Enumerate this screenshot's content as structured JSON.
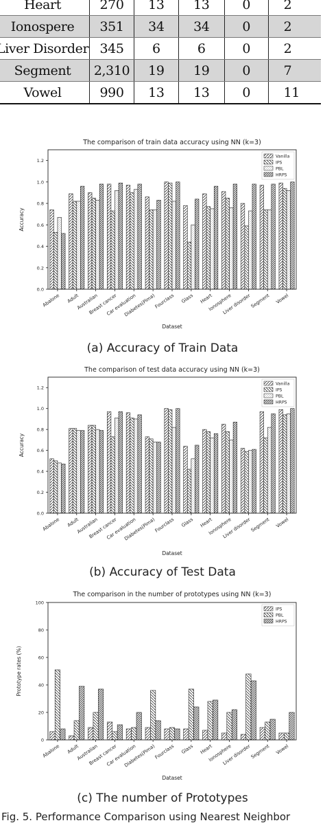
{
  "table": {
    "rows": [
      {
        "name": "Heart",
        "c1": "270",
        "c2": "13",
        "c3": "13",
        "c4": "0",
        "c5": "2",
        "shade": false
      },
      {
        "name": "Ionospere",
        "c1": "351",
        "c2": "34",
        "c3": "34",
        "c4": "0",
        "c5": "2",
        "shade": true
      },
      {
        "name": "Liver Disorder",
        "c1": "345",
        "c2": "6",
        "c3": "6",
        "c4": "0",
        "c5": "2",
        "shade": false
      },
      {
        "name": "Segment",
        "c1": "2,310",
        "c2": "19",
        "c3": "19",
        "c4": "0",
        "c5": "7",
        "shade": true
      },
      {
        "name": "Vowel",
        "c1": "990",
        "c2": "13",
        "c3": "13",
        "c4": "0",
        "c5": "11",
        "shade": false
      }
    ]
  },
  "captions": {
    "a": "(a) Accuracy of Train Data",
    "b": "(b) Accuracy of Test Data",
    "c": "(c) The number of Prototypes",
    "figure": "Fig. 5. Performance Comparison using Nearest Neighbor"
  },
  "colors": {
    "bar_fill": "#ffffff",
    "bar_stroke": "#222222",
    "axis": "#222222"
  },
  "chart_data": [
    {
      "type": "bar",
      "title": "The comparison of train data accuracy using NN (k=3)",
      "xlabel": "Dataset",
      "ylabel": "Accuracy",
      "ylim": [
        0,
        1.3
      ],
      "yticks": [
        "0.0",
        "0.2",
        "0.4",
        "0.6",
        "0.8",
        "1.0",
        "1.2"
      ],
      "legend_position": "top-right",
      "categories": [
        "Abalone",
        "Adult",
        "Australian",
        "Breast cancer",
        "Car evaluation",
        "Diabetes(Pima)",
        "Fourclass",
        "Glass",
        "Heart",
        "Ionosphere",
        "Liver disorder",
        "Segment",
        "Vowel"
      ],
      "series": [
        {
          "name": "Vanilla",
          "pattern": "diag",
          "values": [
            0.74,
            0.89,
            0.9,
            0.98,
            0.97,
            0.86,
            1.0,
            0.78,
            0.89,
            0.91,
            0.8,
            0.97,
            0.99
          ]
        },
        {
          "name": "IPS",
          "pattern": "back",
          "values": [
            0.53,
            0.82,
            0.85,
            0.73,
            0.9,
            0.74,
            0.99,
            0.44,
            0.77,
            0.85,
            0.59,
            0.74,
            0.94
          ]
        },
        {
          "name": "PBL",
          "pattern": "light",
          "values": [
            0.67,
            0.82,
            0.83,
            0.92,
            0.93,
            0.74,
            0.82,
            0.6,
            0.75,
            0.76,
            0.73,
            0.74,
            0.92
          ]
        },
        {
          "name": "HRPS",
          "pattern": "dense",
          "values": [
            0.52,
            0.96,
            0.98,
            0.99,
            0.98,
            0.83,
            1.0,
            0.84,
            0.96,
            0.98,
            0.98,
            0.98,
            1.0
          ]
        }
      ]
    },
    {
      "type": "bar",
      "title": "The comparison of test data accuracy using NN (k=3)",
      "xlabel": "Dataset",
      "ylabel": "Accuracy",
      "ylim": [
        0,
        1.3
      ],
      "yticks": [
        "0.0",
        "0.2",
        "0.4",
        "0.6",
        "0.8",
        "1.0",
        "1.2"
      ],
      "legend_position": "top-right",
      "categories": [
        "Abalone",
        "Adult",
        "Australian",
        "Breast cancer",
        "Car evaluation",
        "Diabetes(Pima)",
        "Fourclass",
        "Glass",
        "Heart",
        "Ionosphere",
        "Liver disorder",
        "Segment",
        "Vowel"
      ],
      "series": [
        {
          "name": "Vanilla",
          "pattern": "diag",
          "values": [
            0.52,
            0.81,
            0.84,
            0.97,
            0.96,
            0.73,
            1.0,
            0.64,
            0.8,
            0.85,
            0.62,
            0.97,
            0.99
          ]
        },
        {
          "name": "IPS",
          "pattern": "back",
          "values": [
            0.5,
            0.81,
            0.84,
            0.73,
            0.91,
            0.71,
            0.99,
            0.42,
            0.78,
            0.78,
            0.59,
            0.72,
            0.94
          ]
        },
        {
          "name": "PBL",
          "pattern": "light",
          "values": [
            0.48,
            0.79,
            0.8,
            0.91,
            0.9,
            0.68,
            0.82,
            0.52,
            0.72,
            0.7,
            0.6,
            0.82,
            0.95
          ]
        },
        {
          "name": "HRPS",
          "pattern": "dense",
          "values": [
            0.47,
            0.79,
            0.79,
            0.97,
            0.94,
            0.68,
            1.0,
            0.65,
            0.76,
            0.87,
            0.61,
            0.95,
            1.0
          ]
        }
      ]
    },
    {
      "type": "bar",
      "title": "The comparison in the number of prototypes using NN (k=3)",
      "xlabel": "Dataset",
      "ylabel": "Prototype rates (%)",
      "ylim": [
        0,
        100
      ],
      "yticks": [
        "0",
        "20",
        "40",
        "60",
        "80",
        "100"
      ],
      "legend_position": "top-right",
      "categories": [
        "Abalone",
        "Adult",
        "Australian",
        "Breast cancer",
        "Car evaluation",
        "Diabetes(Pima)",
        "Fourclass",
        "Glass",
        "Heart",
        "Ionosphere",
        "Liver disorder",
        "Segment",
        "Vowel"
      ],
      "series": [
        {
          "name": "IPS",
          "pattern": "diag",
          "values": [
            6,
            3,
            9,
            13,
            8,
            9,
            8,
            8,
            7,
            5,
            4,
            9,
            5
          ]
        },
        {
          "name": "PBL",
          "pattern": "back",
          "values": [
            51,
            14,
            20,
            6,
            9,
            36,
            9,
            37,
            28,
            20,
            48,
            13,
            5
          ]
        },
        {
          "name": "HRPS",
          "pattern": "dense",
          "values": [
            8,
            39,
            37,
            11,
            20,
            14,
            8,
            24,
            29,
            22,
            43,
            15,
            20
          ]
        }
      ]
    }
  ]
}
